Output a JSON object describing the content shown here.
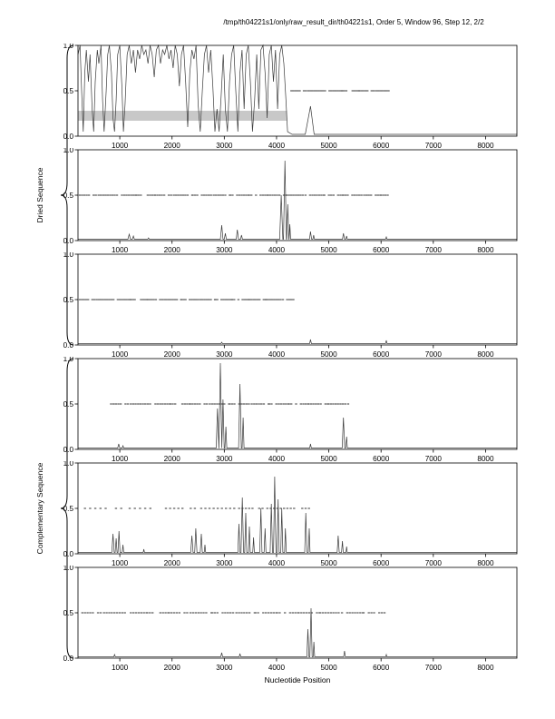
{
  "chart_data": {
    "type": "line",
    "title": "/tmp/th04221s1/only/raw_result_dir/th04221s1, Order 5, Window 96, Step 12, 2/2",
    "xlabel": "Nucleotide Position",
    "ylabel": "",
    "xlim": [
      200,
      8600
    ],
    "ylim": [
      0,
      1
    ],
    "xticks": [
      1000,
      2000,
      3000,
      4000,
      5000,
      6000,
      7000,
      8000
    ],
    "yticks": [
      0,
      0.5,
      1
    ],
    "grid": false,
    "legend": "none",
    "panel_groups": [
      {
        "label": "Dried Sequence",
        "panels": [
          0,
          1,
          2
        ]
      },
      {
        "label": "Complementary Sequence",
        "panels": [
          3,
          4,
          5
        ]
      }
    ],
    "band_color": "#c8c8c8",
    "line_color": "#3a3a3a",
    "dash_color": "#555555",
    "panels": [
      {
        "name": "dried-1",
        "band": {
          "x": [
            200,
            4200
          ],
          "y": [
            0.17,
            0.28
          ],
          "color": "#c8c8c8"
        },
        "curve": [
          [
            200,
            0.9
          ],
          [
            240,
            1.0
          ],
          [
            270,
            0.5
          ],
          [
            300,
            0.05
          ],
          [
            330,
            0.7
          ],
          [
            360,
            0.95
          ],
          [
            400,
            0.6
          ],
          [
            430,
            0.9
          ],
          [
            470,
            0.3
          ],
          [
            500,
            0.05
          ],
          [
            530,
            0.6
          ],
          [
            570,
            0.95
          ],
          [
            600,
            0.8
          ],
          [
            640,
            1.0
          ],
          [
            670,
            0.4
          ],
          [
            700,
            0.05
          ],
          [
            740,
            0.5
          ],
          [
            770,
            0.9
          ],
          [
            800,
            1.0
          ],
          [
            840,
            0.7
          ],
          [
            870,
            0.2
          ],
          [
            900,
            0.05
          ],
          [
            930,
            0.4
          ],
          [
            960,
            0.9
          ],
          [
            1000,
            1.0
          ],
          [
            1040,
            0.55
          ],
          [
            1070,
            0.05
          ],
          [
            1100,
            0.35
          ],
          [
            1140,
            0.9
          ],
          [
            1180,
            1.0
          ],
          [
            1220,
            0.8
          ],
          [
            1260,
            0.95
          ],
          [
            1300,
            0.7
          ],
          [
            1340,
            0.95
          ],
          [
            1380,
            0.85
          ],
          [
            1420,
            1.0
          ],
          [
            1460,
            0.9
          ],
          [
            1500,
            0.95
          ],
          [
            1540,
            0.8
          ],
          [
            1580,
            1.0
          ],
          [
            1620,
            0.9
          ],
          [
            1660,
            0.65
          ],
          [
            1700,
            0.95
          ],
          [
            1740,
            1.0
          ],
          [
            1780,
            0.8
          ],
          [
            1820,
            0.95
          ],
          [
            1860,
            0.9
          ],
          [
            1900,
            1.0
          ],
          [
            1940,
            0.85
          ],
          [
            1980,
            0.95
          ],
          [
            2020,
            0.75
          ],
          [
            2060,
            1.0
          ],
          [
            2100,
            0.9
          ],
          [
            2140,
            0.55
          ],
          [
            2180,
            0.9
          ],
          [
            2220,
            1.0
          ],
          [
            2260,
            0.6
          ],
          [
            2300,
            0.1
          ],
          [
            2340,
            0.7
          ],
          [
            2380,
            0.95
          ],
          [
            2420,
            0.85
          ],
          [
            2460,
            1.0
          ],
          [
            2500,
            0.35
          ],
          [
            2540,
            0.05
          ],
          [
            2580,
            0.5
          ],
          [
            2620,
            0.9
          ],
          [
            2660,
            1.0
          ],
          [
            2700,
            0.7
          ],
          [
            2740,
            0.95
          ],
          [
            2780,
            0.55
          ],
          [
            2820,
            0.05
          ],
          [
            2860,
            0.3
          ],
          [
            2900,
            0.05
          ],
          [
            2940,
            0.45
          ],
          [
            2980,
            0.9
          ],
          [
            3020,
            0.3
          ],
          [
            3060,
            0.05
          ],
          [
            3100,
            0.6
          ],
          [
            3140,
            0.9
          ],
          [
            3180,
            1.0
          ],
          [
            3220,
            0.5
          ],
          [
            3260,
            0.05
          ],
          [
            3300,
            0.7
          ],
          [
            3340,
            0.95
          ],
          [
            3380,
            0.3
          ],
          [
            3420,
            0.9
          ],
          [
            3460,
            1.0
          ],
          [
            3500,
            0.6
          ],
          [
            3540,
            0.05
          ],
          [
            3580,
            0.4
          ],
          [
            3620,
            0.9
          ],
          [
            3660,
            0.3
          ],
          [
            3700,
            0.95
          ],
          [
            3740,
            1.0
          ],
          [
            3780,
            0.7
          ],
          [
            3820,
            0.2
          ],
          [
            3860,
            0.9
          ],
          [
            3900,
            1.0
          ],
          [
            3940,
            0.6
          ],
          [
            3980,
            0.95
          ],
          [
            4020,
            0.3
          ],
          [
            4060,
            0.9
          ],
          [
            4100,
            1.0
          ],
          [
            4140,
            0.8
          ],
          [
            4180,
            0.4
          ],
          [
            4210,
            0.05
          ],
          [
            4300,
            0.02
          ],
          [
            4550,
            0.02
          ],
          [
            4650,
            0.33
          ],
          [
            4720,
            0.02
          ],
          [
            8600,
            0.02
          ]
        ],
        "dashes": [
          [
            4300,
            6150,
            36
          ]
        ]
      },
      {
        "name": "dried-2",
        "spikes": [
          [
            1180,
            0.07,
            25
          ],
          [
            1260,
            0.05,
            20
          ],
          [
            1550,
            0.03,
            15
          ],
          [
            2950,
            0.17,
            25
          ],
          [
            3020,
            0.08,
            20
          ],
          [
            3250,
            0.12,
            22
          ],
          [
            3330,
            0.06,
            18
          ],
          [
            4090,
            0.5,
            30
          ],
          [
            4160,
            0.88,
            28
          ],
          [
            4215,
            0.4,
            20
          ],
          [
            4255,
            0.18,
            15
          ],
          [
            4650,
            0.1,
            20
          ],
          [
            4710,
            0.06,
            15
          ],
          [
            5280,
            0.08,
            20
          ],
          [
            5340,
            0.05,
            15
          ],
          [
            6100,
            0.04,
            15
          ]
        ],
        "dashes": [
          [
            250,
            6150,
            40
          ]
        ]
      },
      {
        "name": "dried-3",
        "spikes": [
          [
            2950,
            0.03,
            15
          ],
          [
            4650,
            0.06,
            18
          ],
          [
            6100,
            0.05,
            15
          ]
        ],
        "dashes": [
          [
            250,
            4350,
            36
          ]
        ]
      },
      {
        "name": "complementary-1",
        "spikes": [
          [
            980,
            0.06,
            20
          ],
          [
            1060,
            0.04,
            15
          ],
          [
            2870,
            0.45,
            25
          ],
          [
            2925,
            0.95,
            28
          ],
          [
            2975,
            0.55,
            22
          ],
          [
            3030,
            0.25,
            18
          ],
          [
            3300,
            0.72,
            26
          ],
          [
            3360,
            0.35,
            18
          ],
          [
            4650,
            0.06,
            15
          ],
          [
            5280,
            0.35,
            24
          ],
          [
            5340,
            0.14,
            16
          ]
        ],
        "dashes": [
          [
            850,
            5400,
            42
          ]
        ]
      },
      {
        "name": "complementary-2",
        "spikes": [
          [
            870,
            0.22,
            22
          ],
          [
            930,
            0.17,
            18
          ],
          [
            985,
            0.25,
            20
          ],
          [
            1060,
            0.1,
            15
          ],
          [
            1460,
            0.05,
            12
          ],
          [
            2380,
            0.2,
            22
          ],
          [
            2455,
            0.28,
            22
          ],
          [
            2560,
            0.22,
            20
          ],
          [
            2630,
            0.1,
            14
          ],
          [
            3280,
            0.33,
            20
          ],
          [
            3345,
            0.62,
            24
          ],
          [
            3410,
            0.45,
            20
          ],
          [
            3480,
            0.3,
            18
          ],
          [
            3560,
            0.18,
            15
          ],
          [
            3700,
            0.5,
            22
          ],
          [
            3780,
            0.28,
            18
          ],
          [
            3900,
            0.55,
            22
          ],
          [
            3965,
            0.85,
            24
          ],
          [
            4030,
            0.6,
            20
          ],
          [
            4100,
            0.5,
            20
          ],
          [
            4170,
            0.28,
            16
          ],
          [
            4560,
            0.45,
            22
          ],
          [
            4625,
            0.28,
            16
          ],
          [
            5180,
            0.2,
            20
          ],
          [
            5260,
            0.14,
            16
          ],
          [
            5340,
            0.08,
            12
          ]
        ],
        "dashes": [
          [
            350,
            1650,
            95
          ],
          [
            1900,
            3250,
            75
          ],
          [
            3300,
            4650,
            60
          ]
        ]
      },
      {
        "name": "complementary-3",
        "spikes": [
          [
            900,
            0.04,
            15
          ],
          [
            2950,
            0.06,
            18
          ],
          [
            3300,
            0.05,
            15
          ],
          [
            4600,
            0.32,
            20
          ],
          [
            4660,
            0.55,
            22
          ],
          [
            4715,
            0.18,
            14
          ],
          [
            5300,
            0.08,
            16
          ],
          [
            6100,
            0.04,
            12
          ]
        ],
        "dashes": [
          [
            300,
            6050,
            46
          ]
        ]
      }
    ]
  }
}
